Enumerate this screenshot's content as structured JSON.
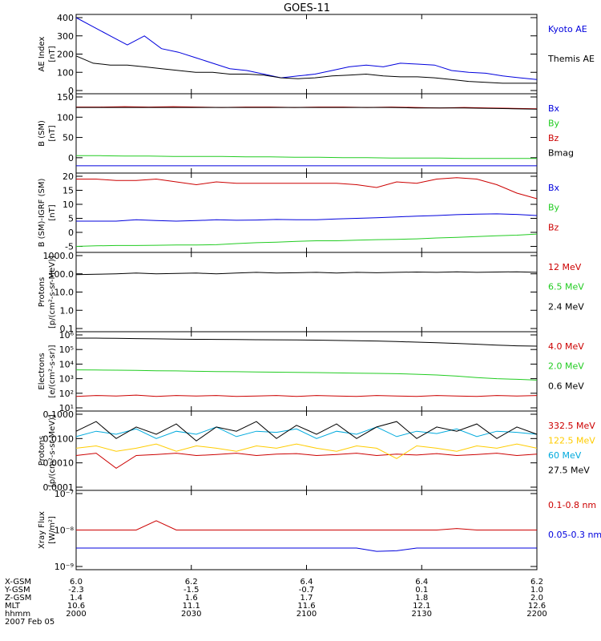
{
  "title": "GOES-11",
  "colors": {
    "blue": "#0000dd",
    "black": "#000000",
    "red": "#cc0000",
    "green": "#22cc22",
    "cyan": "#00aadd",
    "yellow": "#ffcc00",
    "darkred": "#990000"
  },
  "chart_data": [
    {
      "type": "line",
      "ylabel": [
        "AE Index",
        "[nT]"
      ],
      "ylim": [
        0,
        400
      ],
      "yticks": [
        0,
        100,
        200,
        300,
        400
      ],
      "ytick_labels": [
        "0",
        "100",
        "200",
        "300",
        "400"
      ],
      "series": [
        {
          "name": "Kyoto AE",
          "color": "#0000dd",
          "values": [
            400,
            350,
            300,
            250,
            300,
            230,
            210,
            180,
            150,
            120,
            110,
            90,
            70,
            80,
            90,
            110,
            130,
            140,
            130,
            150,
            145,
            140,
            110,
            100,
            95,
            80,
            70,
            60
          ]
        },
        {
          "name": "Themis AE",
          "color": "#000000",
          "values": [
            190,
            150,
            140,
            140,
            130,
            120,
            110,
            100,
            100,
            90,
            90,
            85,
            70,
            65,
            70,
            80,
            85,
            90,
            80,
            75,
            75,
            70,
            60,
            50,
            45,
            40,
            40,
            40
          ]
        }
      ]
    },
    {
      "type": "line",
      "ylabel": [
        "B (SM)",
        "[nT]"
      ],
      "ylim": [
        -30,
        150
      ],
      "yticks": [
        0,
        50,
        100,
        150
      ],
      "ytick_labels": [
        "0",
        "50",
        "100",
        "150"
      ],
      "series": [
        {
          "name": "Bx",
          "color": "#0000dd",
          "values": [
            -20,
            -20,
            -20,
            -20,
            -20,
            -20,
            -20,
            -20,
            -20,
            -20,
            -20,
            -20,
            -20,
            -20,
            -20,
            -20,
            -20,
            -20,
            -20,
            -20
          ]
        },
        {
          "name": "By",
          "color": "#22cc22",
          "values": [
            5,
            5,
            4,
            4,
            3,
            3,
            3,
            2,
            2,
            1,
            1,
            0,
            0,
            -1,
            -1,
            -1,
            -2,
            -2,
            -2,
            -2
          ]
        },
        {
          "name": "Bz",
          "color": "#cc0000",
          "values": [
            125,
            125,
            126,
            125,
            126,
            125,
            124,
            125,
            125,
            124,
            125,
            125,
            124,
            125,
            124,
            123,
            124,
            123,
            122,
            121
          ]
        },
        {
          "name": "Bmag",
          "color": "#000000",
          "values": [
            124,
            124,
            124,
            124,
            124,
            124,
            124,
            124,
            124,
            124,
            124,
            124,
            124,
            124,
            123,
            123,
            123,
            122,
            121,
            120
          ]
        }
      ]
    },
    {
      "type": "line",
      "ylabel": [
        "B (SM)-IGRF (SM)",
        "[nT]"
      ],
      "ylim": [
        -6,
        20
      ],
      "yticks": [
        -5,
        0,
        5,
        10,
        15,
        20
      ],
      "ytick_labels": [
        "-5",
        "0",
        "5",
        "10",
        "15",
        "20"
      ],
      "series": [
        {
          "name": "Bx",
          "color": "#0000dd",
          "values": [
            4,
            4,
            4,
            4.5,
            4.2,
            4,
            4.2,
            4.5,
            4.3,
            4.4,
            4.6,
            4.5,
            4.5,
            4.8,
            5,
            5.2,
            5.5,
            5.8,
            6,
            6.3,
            6.5,
            6.6,
            6.4,
            6
          ]
        },
        {
          "name": "By",
          "color": "#22cc22",
          "values": [
            -5,
            -4.8,
            -4.7,
            -4.7,
            -4.6,
            -4.5,
            -4.5,
            -4.4,
            -4,
            -3.7,
            -3.5,
            -3.2,
            -3,
            -3,
            -2.8,
            -2.6,
            -2.5,
            -2.3,
            -2,
            -1.8,
            -1.5,
            -1.2,
            -1,
            -0.6
          ]
        },
        {
          "name": "Bz",
          "color": "#cc0000",
          "values": [
            19,
            19,
            18.5,
            18.5,
            19,
            18,
            17,
            18,
            17.5,
            17.5,
            17.5,
            17.5,
            17.5,
            17.5,
            17,
            16,
            18,
            17.5,
            19,
            19.5,
            19,
            17,
            14,
            12
          ]
        }
      ]
    },
    {
      "type": "line",
      "log": true,
      "ylabel": [
        "Protons",
        "[p/(cm²-s-sr-MeV)]"
      ],
      "ylim": [
        0.1,
        1000
      ],
      "yticks": [
        0.1,
        1,
        10,
        100,
        1000
      ],
      "ytick_labels": [
        "0.1",
        "1.0",
        "10.0",
        "100.0",
        "1000.0"
      ],
      "series": [
        {
          "name": "12 MeV",
          "color": "#cc0000",
          "values": []
        },
        {
          "name": "6.5 MeV",
          "color": "#22cc22",
          "values": []
        },
        {
          "name": "2.4 MeV",
          "color": "#000000",
          "values": [
            90,
            95,
            100,
            110,
            100,
            105,
            110,
            100,
            110,
            120,
            110,
            115,
            120,
            110,
            120,
            115,
            120,
            125,
            120,
            130,
            120,
            125,
            130,
            120
          ]
        }
      ]
    },
    {
      "type": "line",
      "log": true,
      "ylabel": [
        "Electrons",
        "[e/(cm²-s-sr)]"
      ],
      "ylim": [
        10,
        1000000
      ],
      "yticks": [
        10,
        100,
        1000,
        10000,
        100000,
        1000000
      ],
      "ytick_labels": [
        "10¹",
        "10²",
        "10³",
        "10⁴",
        "10⁵",
        "10⁶"
      ],
      "series": [
        {
          "name": "4.0 MeV",
          "color": "#cc0000",
          "values": [
            60,
            70,
            65,
            75,
            60,
            70,
            65,
            70,
            60,
            65,
            70,
            60,
            70,
            65,
            60,
            70,
            65,
            60,
            70,
            65,
            60,
            70,
            65,
            70
          ]
        },
        {
          "name": "2.0 MeV",
          "color": "#22cc22",
          "values": [
            4000,
            3900,
            3800,
            3700,
            3500,
            3400,
            3200,
            3100,
            3000,
            2900,
            2800,
            2700,
            2600,
            2500,
            2400,
            2300,
            2200,
            2000,
            1800,
            1500,
            1200,
            1000,
            900,
            800
          ]
        },
        {
          "name": "0.6 MeV",
          "color": "#000000",
          "values": [
            600000,
            600000,
            580000,
            560000,
            540000,
            520000,
            500000,
            490000,
            480000,
            470000,
            460000,
            450000,
            440000,
            420000,
            400000,
            380000,
            350000,
            320000,
            290000,
            260000,
            230000,
            200000,
            180000,
            170000
          ]
        }
      ]
    },
    {
      "type": "line",
      "log": true,
      "ylabel": [
        "Protons",
        "[p/(cm²-s-sr-MeV)]"
      ],
      "ylim": [
        0.0001,
        0.1
      ],
      "yticks": [
        0.0001,
        0.001,
        0.01,
        0.1
      ],
      "ytick_labels": [
        "0.0001",
        "0.0010",
        "0.0100",
        "0.1000"
      ],
      "series": [
        {
          "name": "332.5 MeV",
          "color": "#cc0000",
          "values": [
            0.002,
            0.0025,
            0.0006,
            0.002,
            0.0022,
            0.0025,
            0.002,
            0.0022,
            0.0025,
            0.002,
            0.0023,
            0.0024,
            0.002,
            0.0022,
            0.0025,
            0.002,
            0.0023,
            0.0021,
            0.0024,
            0.002,
            0.0022,
            0.0025,
            0.002,
            0.0023
          ]
        },
        {
          "name": "122.5 MeV",
          "color": "#ffcc00",
          "values": [
            0.004,
            0.005,
            0.003,
            0.004,
            0.006,
            0.003,
            0.005,
            0.004,
            0.003,
            0.005,
            0.004,
            0.006,
            0.004,
            0.003,
            0.005,
            0.004,
            0.0015,
            0.005,
            0.004,
            0.003,
            0.005,
            0.004,
            0.006,
            0.004
          ]
        },
        {
          "name": "60 MeV",
          "color": "#00aadd",
          "values": [
            0.012,
            0.02,
            0.015,
            0.025,
            0.01,
            0.02,
            0.015,
            0.03,
            0.012,
            0.02,
            0.018,
            0.025,
            0.01,
            0.02,
            0.015,
            0.03,
            0.012,
            0.02,
            0.016,
            0.025,
            0.012,
            0.02,
            0.018,
            0.015
          ]
        },
        {
          "name": "27.5 MeV",
          "color": "#000000",
          "values": [
            0.02,
            0.05,
            0.01,
            0.03,
            0.015,
            0.04,
            0.008,
            0.03,
            0.02,
            0.05,
            0.01,
            0.035,
            0.015,
            0.04,
            0.01,
            0.03,
            0.05,
            0.01,
            0.03,
            0.02,
            0.04,
            0.01,
            0.03,
            0.015
          ]
        }
      ]
    },
    {
      "type": "line",
      "log": true,
      "ylabel": [
        "Xray Flux",
        "[W/m²]"
      ],
      "ylim": [
        1e-09,
        1e-07
      ],
      "yticks": [
        1e-09,
        1e-08,
        1e-07
      ],
      "ytick_labels": [
        "10⁻⁹",
        "10⁻⁸",
        "10⁻⁷"
      ],
      "series": [
        {
          "name": "0.1-0.8 nm",
          "color": "#cc0000",
          "values": [
            1e-08,
            1e-08,
            1e-08,
            1e-08,
            1.8e-08,
            1e-08,
            1e-08,
            1e-08,
            1e-08,
            1e-08,
            1e-08,
            1e-08,
            1e-08,
            1e-08,
            1e-08,
            1e-08,
            1e-08,
            1e-08,
            1e-08,
            1.1e-08,
            1e-08,
            1e-08,
            1e-08,
            1e-08
          ]
        },
        {
          "name": "0.05-0.3 nm",
          "color": "#0000dd",
          "values": [
            3.2e-09,
            3.2e-09,
            3.2e-09,
            3.2e-09,
            3.2e-09,
            3.2e-09,
            3.2e-09,
            3.2e-09,
            3.2e-09,
            3.2e-09,
            3.2e-09,
            3.2e-09,
            3.2e-09,
            3.2e-09,
            3.2e-09,
            2.6e-09,
            2.7e-09,
            3.2e-09,
            3.2e-09,
            3.2e-09,
            3.2e-09,
            3.2e-09,
            3.2e-09,
            3.2e-09
          ]
        }
      ]
    }
  ],
  "footer": {
    "rows": [
      {
        "label": "X-GSM",
        "values": [
          "6.0",
          "6.2",
          "6.4",
          "6.4",
          "6.2"
        ]
      },
      {
        "label": "Y-GSM",
        "values": [
          "-2.3",
          "-1.5",
          "-0.7",
          "0.1",
          "1.0"
        ]
      },
      {
        "label": "Z-GSM",
        "values": [
          "1.4",
          "1.6",
          "1.7",
          "1.8",
          "2.0"
        ]
      },
      {
        "label": "MLT",
        "values": [
          "10.6",
          "11.1",
          "11.6",
          "12.1",
          "12.6"
        ]
      },
      {
        "label": "hhmm",
        "values": [
          "2000",
          "2030",
          "2100",
          "2130",
          "2200"
        ]
      }
    ],
    "date": "2007 Feb 05"
  }
}
